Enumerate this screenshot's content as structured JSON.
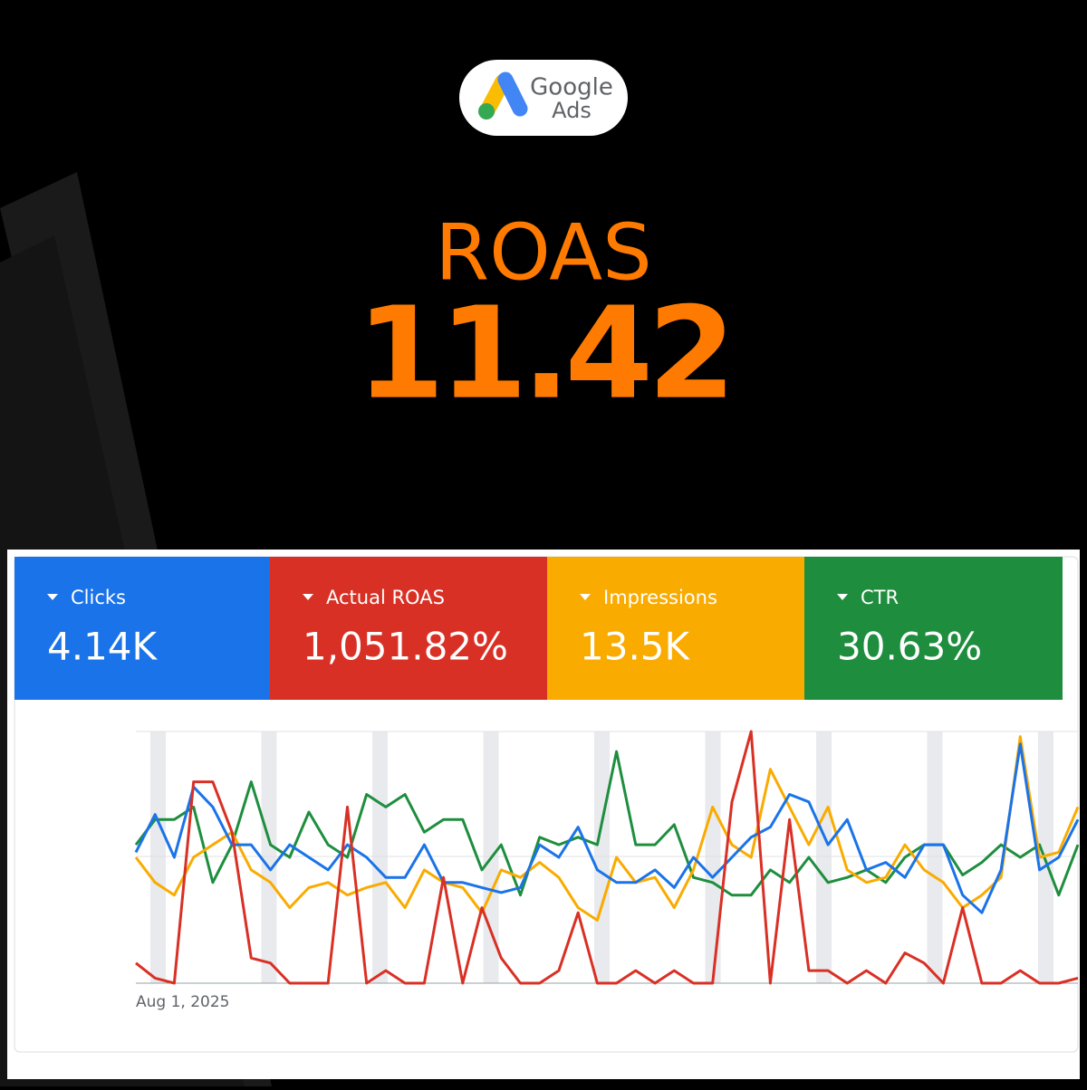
{
  "logo": {
    "line1": "Google",
    "line2": "Ads"
  },
  "headline": {
    "label": "ROAS",
    "value": "11.42"
  },
  "chart_data": {
    "type": "line",
    "x": [
      "Aug 1, 2025",
      null,
      null,
      null,
      null,
      null,
      null,
      null,
      null,
      null,
      null,
      null,
      null,
      null,
      null,
      null,
      null,
      null,
      null,
      null,
      null,
      null,
      null,
      null,
      null,
      null,
      null,
      null,
      null,
      null,
      null,
      null,
      null,
      null,
      null,
      null,
      null,
      null,
      null,
      null,
      null,
      null,
      null,
      null,
      null,
      null,
      null,
      null,
      null,
      null
    ],
    "ylim": [
      0,
      100
    ],
    "series": [
      {
        "name": "Clicks",
        "summary": "4.14K",
        "color": "#1a73e8",
        "values": [
          52,
          67,
          50,
          78,
          70,
          55,
          55,
          45,
          55,
          50,
          45,
          55,
          50,
          42,
          42,
          55,
          40,
          40,
          38,
          36,
          38,
          55,
          50,
          62,
          45,
          40,
          40,
          45,
          38,
          50,
          42,
          50,
          58,
          62,
          75,
          72,
          55,
          65,
          45,
          48,
          42,
          55,
          55,
          35,
          28,
          45,
          95,
          45,
          50,
          65
        ]
      },
      {
        "name": "Actual ROAS",
        "summary": "1,051.82%",
        "color": "#d93025",
        "values": [
          8,
          2,
          0,
          80,
          80,
          60,
          10,
          8,
          0,
          0,
          0,
          70,
          0,
          5,
          0,
          0,
          42,
          0,
          30,
          10,
          0,
          0,
          5,
          28,
          0,
          0,
          5,
          0,
          5,
          0,
          0,
          72,
          100,
          0,
          65,
          5,
          5,
          0,
          5,
          0,
          12,
          8,
          0,
          30,
          0,
          0,
          5,
          0,
          0,
          2
        ]
      },
      {
        "name": "Impressions",
        "summary": "13.5K",
        "color": "#f9ab00",
        "values": [
          50,
          40,
          35,
          50,
          55,
          60,
          45,
          40,
          30,
          38,
          40,
          35,
          38,
          40,
          30,
          45,
          40,
          38,
          28,
          45,
          42,
          48,
          42,
          30,
          25,
          50,
          40,
          42,
          30,
          45,
          70,
          55,
          50,
          85,
          70,
          55,
          70,
          45,
          40,
          42,
          55,
          45,
          40,
          30,
          35,
          42,
          98,
          50,
          52,
          70
        ]
      },
      {
        "name": "CTR",
        "summary": "30.63%",
        "color": "#1e8e3e",
        "values": [
          55,
          65,
          65,
          70,
          40,
          55,
          80,
          55,
          50,
          68,
          55,
          50,
          75,
          70,
          75,
          60,
          65,
          65,
          45,
          55,
          35,
          58,
          55,
          58,
          55,
          92,
          55,
          55,
          63,
          42,
          40,
          35,
          35,
          45,
          40,
          50,
          40,
          42,
          45,
          40,
          50,
          55,
          55,
          43,
          48,
          55,
          50,
          55,
          35,
          55
        ]
      }
    ]
  }
}
